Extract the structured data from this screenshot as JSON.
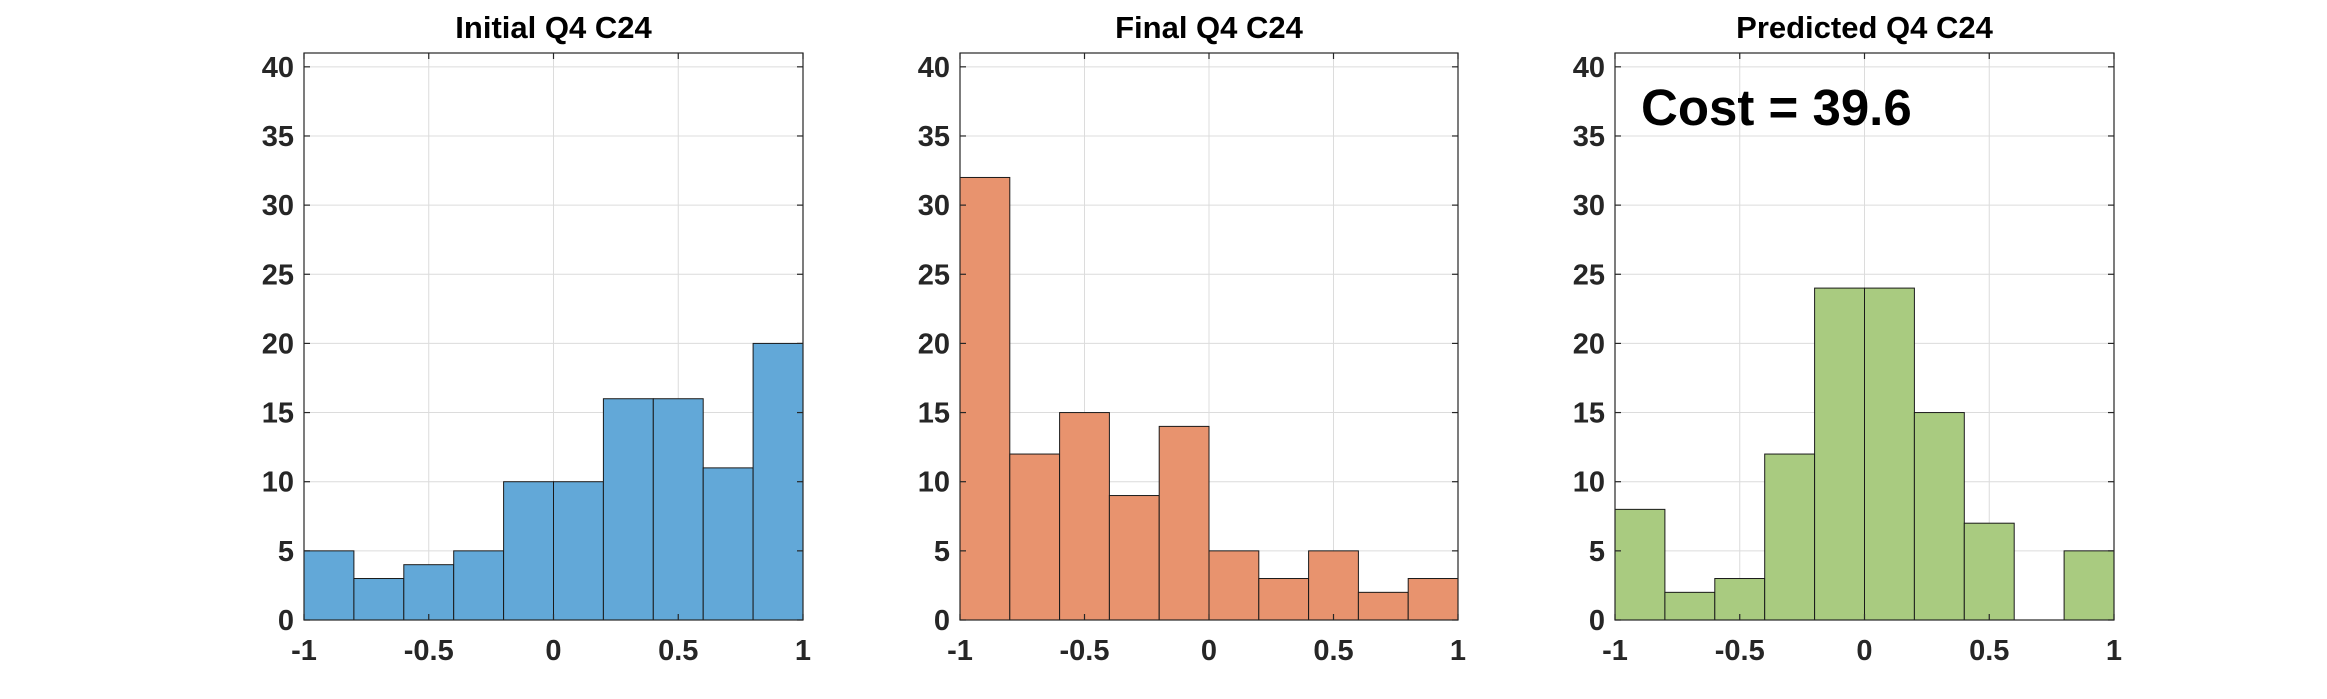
{
  "chart_data": [
    {
      "type": "bar",
      "title": "Initial Q4 C24",
      "bin_edges": [
        -1,
        -0.8,
        -0.6,
        -0.4,
        -0.2,
        0,
        0.2,
        0.4,
        0.6,
        0.8,
        1
      ],
      "values": [
        5,
        3,
        4,
        5,
        10,
        10,
        16,
        16,
        11,
        20
      ],
      "xlim": [
        -1,
        1
      ],
      "ylim": [
        0,
        41
      ],
      "xticks": [
        -1,
        -0.5,
        0,
        0.5,
        1
      ],
      "xtick_labels": [
        "-1",
        "-0.5",
        "0",
        "0.5",
        "1"
      ],
      "yticks": [
        0,
        5,
        10,
        15,
        20,
        25,
        30,
        35,
        40
      ],
      "ytick_labels": [
        "0",
        "5",
        "10",
        "15",
        "20",
        "25",
        "30",
        "35",
        "40"
      ],
      "grid": true,
      "color": "#62a8d8",
      "annotation": ""
    },
    {
      "type": "bar",
      "title": "Final Q4 C24",
      "bin_edges": [
        -1,
        -0.8,
        -0.6,
        -0.4,
        -0.2,
        0,
        0.2,
        0.4,
        0.6,
        0.8,
        1
      ],
      "values": [
        32,
        12,
        15,
        9,
        14,
        5,
        3,
        5,
        2,
        3
      ],
      "xlim": [
        -1,
        1
      ],
      "ylim": [
        0,
        41
      ],
      "xticks": [
        -1,
        -0.5,
        0,
        0.5,
        1
      ],
      "xtick_labels": [
        "-1",
        "-0.5",
        "0",
        "0.5",
        "1"
      ],
      "yticks": [
        0,
        5,
        10,
        15,
        20,
        25,
        30,
        35,
        40
      ],
      "ytick_labels": [
        "0",
        "5",
        "10",
        "15",
        "20",
        "25",
        "30",
        "35",
        "40"
      ],
      "grid": true,
      "color": "#e8936e",
      "annotation": ""
    },
    {
      "type": "bar",
      "title": "Predicted Q4 C24",
      "bin_edges": [
        -1,
        -0.8,
        -0.6,
        -0.4,
        -0.2,
        0,
        0.2,
        0.4,
        0.6,
        0.8,
        1
      ],
      "values": [
        8,
        2,
        3,
        12,
        24,
        24,
        15,
        7,
        0,
        5
      ],
      "xlim": [
        -1,
        1
      ],
      "ylim": [
        0,
        41
      ],
      "xticks": [
        -1,
        -0.5,
        0,
        0.5,
        1
      ],
      "xtick_labels": [
        "-1",
        "-0.5",
        "0",
        "0.5",
        "1"
      ],
      "yticks": [
        0,
        5,
        10,
        15,
        20,
        25,
        30,
        35,
        40
      ],
      "ytick_labels": [
        "0",
        "5",
        "10",
        "15",
        "20",
        "25",
        "30",
        "35",
        "40"
      ],
      "grid": true,
      "color": "#a9cb80",
      "annotation": "Cost = 39.6"
    }
  ]
}
